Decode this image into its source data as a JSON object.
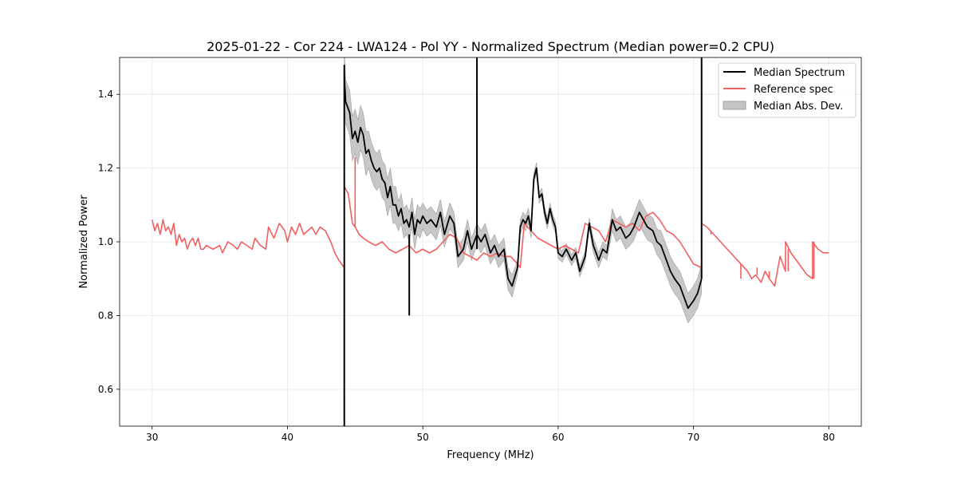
{
  "chart_data": {
    "type": "line",
    "title": "2025-01-22 - Cor 224 - LWA124 - Pol YY - Normalized Spectrum (Median power=0.2 CPU)",
    "xlabel": "Frequency (MHz)",
    "ylabel": "Normalized Power",
    "xlim": [
      27.6,
      82.4
    ],
    "ylim": [
      0.5,
      1.5
    ],
    "xticks": [
      30,
      40,
      50,
      60,
      70,
      80
    ],
    "xtick_labels": [
      "30",
      "40",
      "50",
      "60",
      "70",
      "80"
    ],
    "yticks": [
      0.6,
      0.8,
      1.0,
      1.2,
      1.4
    ],
    "ytick_labels": [
      "0.6",
      "0.8",
      "1.0",
      "1.2",
      "1.4"
    ],
    "grid": true,
    "legend_position": "top-right",
    "legend": {
      "median": "Median Spectrum",
      "reference": "Reference spec",
      "mad": "Median Abs. Dev."
    },
    "colors": {
      "median": "#000000",
      "reference": "#f06060",
      "mad_fill": "#c4c4c4",
      "mad_edge": "#a0a0a0",
      "grid": "#e6e6e6"
    },
    "series": [
      {
        "name": "Reference spec",
        "x": [
          30.0,
          30.2,
          30.4,
          30.6,
          30.8,
          31.0,
          31.2,
          31.4,
          31.6,
          31.8,
          32.0,
          32.2,
          32.4,
          32.6,
          32.8,
          33.0,
          33.2,
          33.4,
          33.6,
          33.8,
          34.0,
          34.5,
          35.0,
          35.2,
          35.6,
          36.0,
          36.3,
          36.6,
          37.0,
          37.4,
          37.6,
          38.0,
          38.4,
          38.6,
          39.0,
          39.4,
          39.8,
          40.0,
          40.3,
          40.6,
          40.9,
          41.2,
          41.5,
          41.8,
          42.1,
          42.4,
          42.8,
          43.2,
          43.5,
          43.8,
          44.0,
          44.2,
          44.2,
          44.5,
          44.8,
          45.0,
          45.3,
          45.6,
          46.0,
          46.5,
          47.0,
          47.5,
          48.0,
          48.5,
          49.0,
          49.5,
          50.0,
          50.5,
          51.0,
          51.5,
          52.0,
          52.5,
          53.0,
          53.5,
          54.0,
          54.5,
          55.0,
          55.5,
          56.0,
          56.5,
          57.0,
          57.2,
          57.5,
          58.0,
          58.5,
          59.0,
          59.5,
          60.0,
          60.5,
          61.0,
          61.5,
          62.0,
          62.5,
          63.0,
          63.5,
          64.0,
          64.5,
          65.0,
          65.5,
          66.0,
          66.5,
          67.0,
          67.5,
          68.0,
          68.5,
          69.0,
          69.5,
          70.0,
          70.6,
          70.6,
          71.0,
          71.5,
          72.0,
          72.5,
          73.0,
          73.5,
          74.0,
          74.3,
          74.6,
          75.0,
          75.3,
          75.6,
          76.0,
          76.4,
          76.8,
          76.8,
          77.2,
          77.6,
          78.0,
          78.4,
          78.8,
          78.8,
          79.2,
          79.6,
          80.0
        ],
        "values": [
          1.06,
          1.03,
          1.05,
          1.02,
          1.06,
          1.03,
          1.04,
          1.02,
          1.05,
          0.99,
          1.02,
          1.0,
          1.01,
          0.98,
          1.0,
          1.01,
          0.99,
          1.01,
          0.98,
          0.98,
          0.99,
          0.98,
          0.99,
          0.97,
          1.0,
          0.99,
          0.98,
          1.0,
          0.99,
          0.98,
          1.01,
          0.99,
          0.98,
          1.04,
          1.01,
          1.05,
          1.03,
          1.0,
          1.04,
          1.02,
          1.05,
          1.02,
          1.03,
          1.04,
          1.02,
          1.04,
          1.03,
          1.0,
          0.97,
          0.95,
          0.94,
          0.93,
          1.15,
          1.13,
          1.05,
          1.04,
          1.02,
          1.01,
          1.0,
          0.99,
          1.0,
          0.98,
          0.97,
          0.98,
          0.99,
          0.97,
          0.98,
          0.97,
          0.98,
          1.0,
          1.02,
          1.01,
          0.97,
          0.96,
          0.95,
          0.97,
          0.96,
          0.97,
          0.96,
          0.96,
          0.94,
          0.93,
          1.05,
          1.03,
          1.01,
          1.0,
          0.99,
          0.98,
          0.99,
          0.98,
          0.97,
          1.05,
          1.04,
          1.03,
          1.0,
          1.06,
          1.05,
          1.04,
          1.05,
          1.03,
          1.07,
          1.08,
          1.06,
          1.03,
          1.02,
          1.0,
          0.97,
          0.94,
          0.93,
          1.05,
          1.04,
          1.02,
          1.0,
          0.98,
          0.96,
          0.94,
          0.92,
          0.9,
          0.91,
          0.89,
          0.92,
          0.9,
          0.88,
          0.96,
          0.92,
          1.0,
          0.97,
          0.95,
          0.93,
          0.91,
          0.9,
          1.0,
          0.98,
          0.97,
          0.97
        ],
        "peaks": [
          [
            45.0,
            1.23
          ],
          [
            49.0,
            1.01
          ],
          [
            71.3,
            1.03
          ],
          [
            73.5,
            0.9
          ],
          [
            74.7,
            0.93
          ],
          [
            75.6,
            0.92
          ],
          [
            76.4,
            0.96
          ],
          [
            77.0,
            0.98
          ],
          [
            78.9,
            1.0
          ]
        ]
      },
      {
        "name": "Median Spectrum",
        "x": [
          44.2,
          44.3,
          44.4,
          44.6,
          44.8,
          45.0,
          45.2,
          45.4,
          45.6,
          45.8,
          46.0,
          46.2,
          46.4,
          46.6,
          46.8,
          47.0,
          47.2,
          47.4,
          47.6,
          47.8,
          48.0,
          48.2,
          48.4,
          48.6,
          48.8,
          49.0,
          49.2,
          49.4,
          49.6,
          49.8,
          50.0,
          50.3,
          50.6,
          51.0,
          51.3,
          51.6,
          52.0,
          52.3,
          52.6,
          53.0,
          53.3,
          53.6,
          54.0,
          54.3,
          54.6,
          55.0,
          55.3,
          55.6,
          56.0,
          56.3,
          56.6,
          57.0,
          57.2,
          57.4,
          57.6,
          57.8,
          58.0,
          58.2,
          58.4,
          58.6,
          58.8,
          59.0,
          59.2,
          59.4,
          59.6,
          59.8,
          60.0,
          60.3,
          60.6,
          61.0,
          61.3,
          61.6,
          62.0,
          62.3,
          62.6,
          63.0,
          63.3,
          63.6,
          64.0,
          64.3,
          64.6,
          65.0,
          65.3,
          65.6,
          66.0,
          66.3,
          66.6,
          67.0,
          67.3,
          67.6,
          68.0,
          68.3,
          68.6,
          69.0,
          69.3,
          69.6,
          70.0,
          70.3,
          70.6
        ],
        "values": [
          1.45,
          1.38,
          1.37,
          1.35,
          1.28,
          1.3,
          1.27,
          1.31,
          1.29,
          1.24,
          1.25,
          1.22,
          1.2,
          1.19,
          1.2,
          1.17,
          1.16,
          1.12,
          1.15,
          1.1,
          1.1,
          1.07,
          1.09,
          1.05,
          1.06,
          1.04,
          1.08,
          1.02,
          1.06,
          1.05,
          1.07,
          1.05,
          1.06,
          1.04,
          1.08,
          1.02,
          1.07,
          1.05,
          0.96,
          0.98,
          1.03,
          0.98,
          1.02,
          1.0,
          1.02,
          0.97,
          0.99,
          0.96,
          0.98,
          0.9,
          0.88,
          0.93,
          1.04,
          1.06,
          1.05,
          1.07,
          1.03,
          1.17,
          1.2,
          1.12,
          1.13,
          1.08,
          1.05,
          1.09,
          1.06,
          1.04,
          0.97,
          0.96,
          0.98,
          0.95,
          0.97,
          0.92,
          0.96,
          1.05,
          0.99,
          0.95,
          0.98,
          0.97,
          1.06,
          1.03,
          1.04,
          1.01,
          1.02,
          1.04,
          1.08,
          1.06,
          1.04,
          1.03,
          1.0,
          0.99,
          0.95,
          0.92,
          0.9,
          0.88,
          0.85,
          0.82,
          0.84,
          0.86,
          0.9
        ],
        "spikes": [
          [
            44.2,
            0.5,
            1.48
          ],
          [
            49.0,
            0.8,
            1.02
          ],
          [
            54.0,
            0.98,
            1.5
          ],
          [
            70.6,
            0.9,
            1.5
          ]
        ],
        "mad_halfwidth": [
          0.08,
          0.06,
          0.06,
          0.06,
          0.06,
          0.06,
          0.06,
          0.06,
          0.06,
          0.06,
          0.05,
          0.05,
          0.05,
          0.05,
          0.05,
          0.05,
          0.05,
          0.05,
          0.05,
          0.05,
          0.05,
          0.04,
          0.04,
          0.04,
          0.04,
          0.04,
          0.04,
          0.04,
          0.04,
          0.04,
          0.035,
          0.035,
          0.035,
          0.035,
          0.035,
          0.035,
          0.035,
          0.03,
          0.03,
          0.03,
          0.03,
          0.03,
          0.03,
          0.03,
          0.03,
          0.03,
          0.03,
          0.03,
          0.03,
          0.03,
          0.03,
          0.02,
          0.02,
          0.02,
          0.02,
          0.02,
          0.02,
          0.015,
          0.015,
          0.015,
          0.015,
          0.015,
          0.015,
          0.015,
          0.015,
          0.015,
          0.015,
          0.015,
          0.015,
          0.015,
          0.015,
          0.015,
          0.015,
          0.015,
          0.02,
          0.02,
          0.02,
          0.02,
          0.03,
          0.03,
          0.03,
          0.03,
          0.03,
          0.035,
          0.035,
          0.035,
          0.035,
          0.035,
          0.035,
          0.04,
          0.04,
          0.04,
          0.04,
          0.04,
          0.04,
          0.04,
          0.04,
          0.04,
          0.04
        ]
      }
    ]
  }
}
